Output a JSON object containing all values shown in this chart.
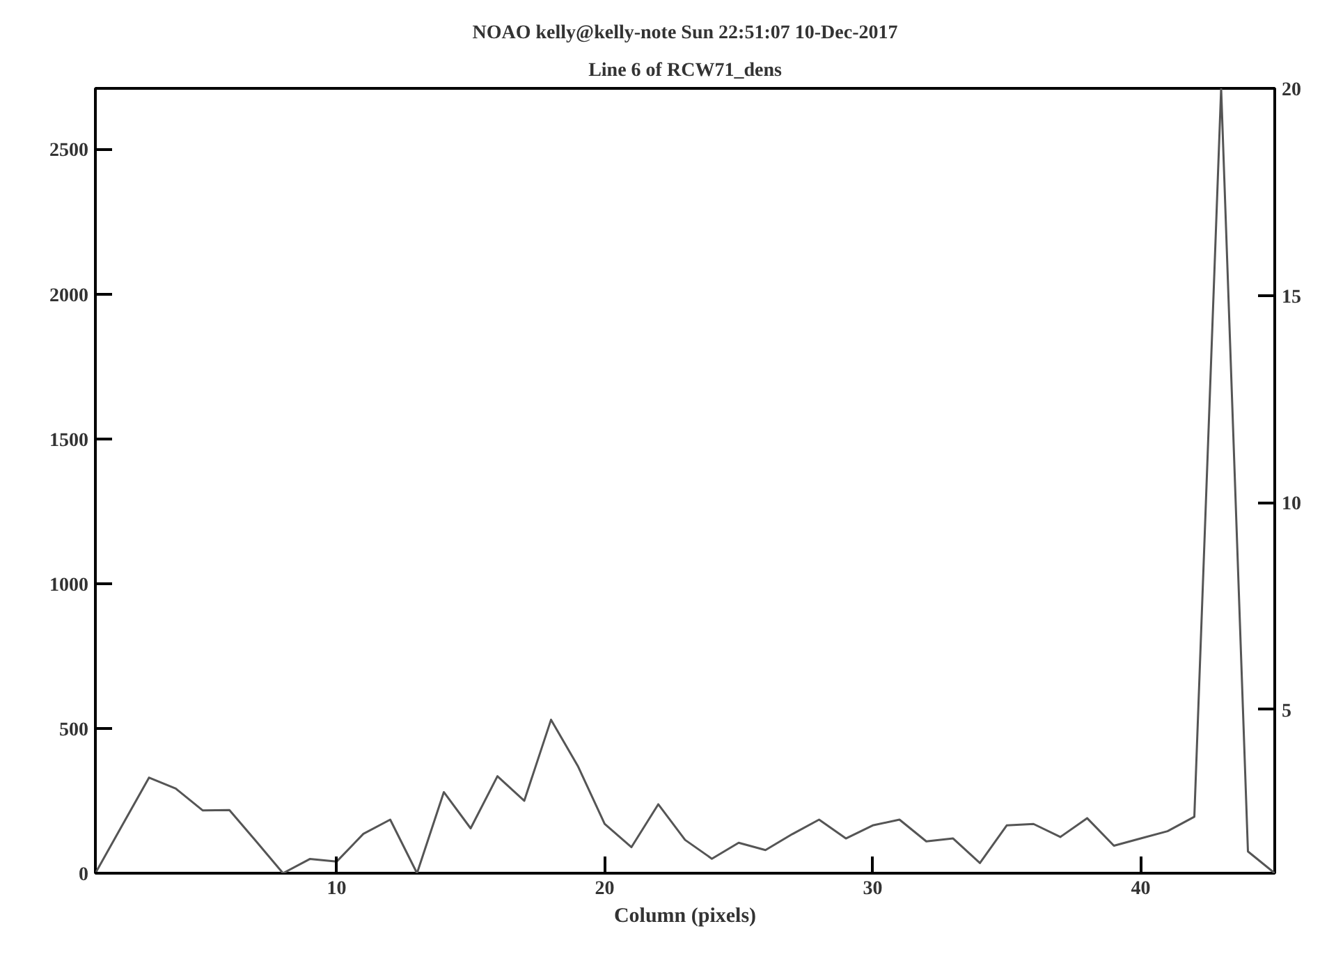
{
  "chart_data": {
    "type": "line",
    "title": "NOAO kelly@kelly-note Sun 22:51:07 10-Dec-2017",
    "subtitle": "Line 6 of RCW71_dens",
    "xlabel": "Column (pixels)",
    "x": [
      1,
      2,
      3,
      4,
      5,
      6,
      7,
      8,
      9,
      10,
      11,
      12,
      13,
      14,
      15,
      16,
      17,
      18,
      19,
      20,
      21,
      22,
      23,
      24,
      25,
      26,
      27,
      28,
      29,
      30,
      31,
      32,
      33,
      34,
      35,
      36,
      37,
      38,
      39,
      40,
      41,
      42,
      43,
      44,
      45
    ],
    "values": [
      0,
      165,
      330,
      292,
      217,
      218,
      110,
      0,
      49,
      40,
      136,
      185,
      0,
      280,
      155,
      335,
      250,
      530,
      370,
      170,
      90,
      238,
      115,
      50,
      105,
      80,
      135,
      185,
      120,
      165,
      185,
      110,
      120,
      35,
      165,
      170,
      125,
      190,
      95,
      120,
      145,
      195,
      2710,
      75,
      0
    ],
    "color": "#555555",
    "xlim": [
      1,
      45
    ],
    "xticks": [
      10,
      20,
      30,
      40
    ],
    "ylim": [
      0,
      2710
    ],
    "yticks": [
      0,
      500,
      1000,
      1500,
      2000,
      2500
    ],
    "y2lim": [
      1.05,
      20
    ],
    "y2ticks": [
      5,
      10,
      15,
      20
    ],
    "grid": false,
    "marker": "none",
    "line_style": "solid"
  }
}
